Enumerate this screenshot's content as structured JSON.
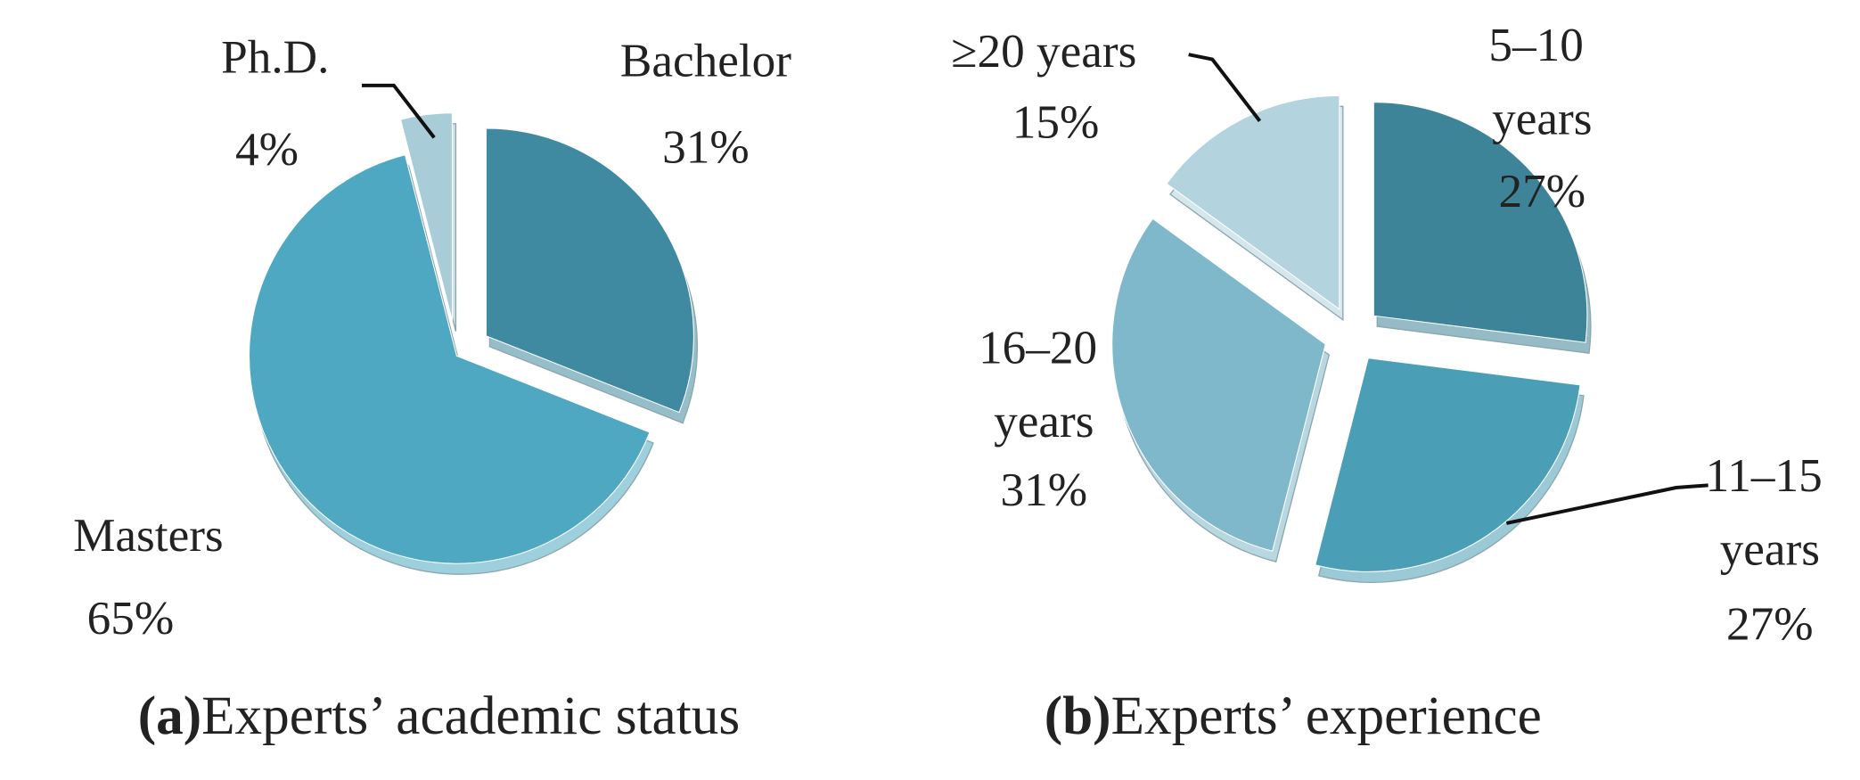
{
  "chart_data": [
    {
      "type": "pie",
      "panel": "(a)",
      "title": "Experts’ academic status",
      "categories": [
        "Bachelor",
        "Masters",
        "Ph.D."
      ],
      "values": [
        31,
        65,
        4
      ],
      "value_labels": [
        "31%",
        "65%",
        "4%"
      ],
      "colors": [
        "#3f8aa0",
        "#4fa8c2",
        "#a9cdd8"
      ]
    },
    {
      "type": "pie",
      "panel": "(b)",
      "title": "Experts’ experience",
      "categories": [
        "5–10 years",
        "11–15 years",
        "16–20 years",
        "≥20 years"
      ],
      "values": [
        27,
        27,
        31,
        15
      ],
      "value_labels": [
        "27%",
        "27%",
        "31%",
        "15%"
      ],
      "colors": [
        "#3e8499",
        "#4a9fb6",
        "#7fb8ca",
        "#b3d3de"
      ]
    }
  ]
}
